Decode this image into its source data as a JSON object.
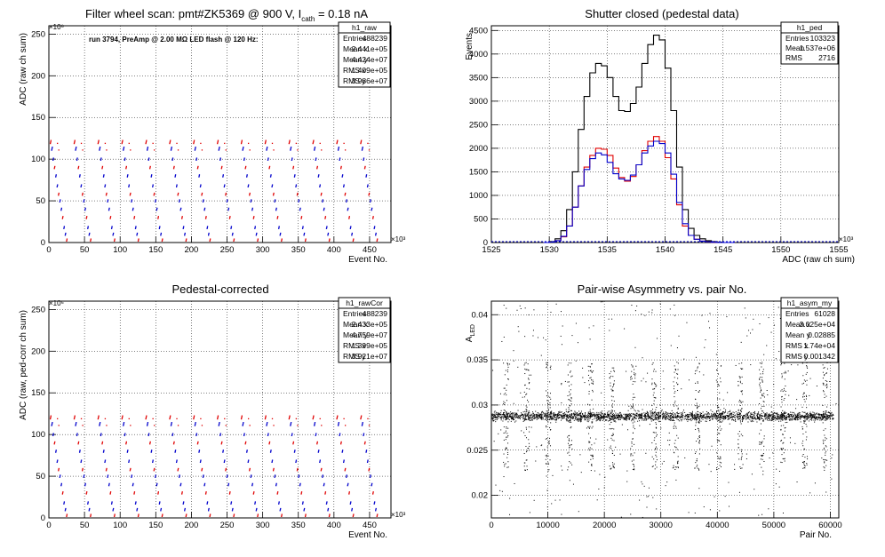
{
  "panels": {
    "raw": {
      "title_main": "Filter wheel scan: pmt#ZK5369 @   900 V, I",
      "title_sub": "cath",
      "title_end": " = 0.18 nA",
      "annotation": "run 3794, PreAmp @ 2.00 MΩ LED flash @  120 Hz:",
      "ylabel": "ADC (raw ch sum)",
      "xlabel": "Event No.",
      "xexp": "×10³",
      "yexp": "×10⁶",
      "stats": {
        "name": "h1_raw",
        "rows": [
          [
            "Entries",
            "488239"
          ],
          [
            "Mean x",
            "2.441e+05"
          ],
          [
            "Mean y",
            "4.424e+07"
          ],
          [
            "RMS x",
            "1.409e+05"
          ],
          [
            "RMS y",
            "3.986e+07"
          ]
        ]
      }
    },
    "ped": {
      "title": "Shutter closed (pedestal data)",
      "ylabel": "Events",
      "xlabel": "ADC (raw ch sum)",
      "xexp": "×10³",
      "stats": {
        "name": "h1_ped",
        "rows": [
          [
            "Entries",
            "103323"
          ],
          [
            "Mean",
            "1.537e+06"
          ],
          [
            "RMS",
            "2716"
          ]
        ]
      }
    },
    "cor": {
      "title": "Pedestal-corrected",
      "ylabel": "ADC (raw, ped-corr ch sum)",
      "xlabel": "Event No.",
      "xexp": "×10³",
      "yexp": "×10⁶",
      "stats": {
        "name": "h1_rawCor",
        "rows": [
          [
            "Entries",
            "488239"
          ],
          [
            "Mean x",
            "2.433e+05"
          ],
          [
            "Mean y",
            "4.759e+07"
          ],
          [
            "RMS x",
            "1.399e+05"
          ],
          [
            "RMS y",
            "3.921e+07"
          ]
        ]
      }
    },
    "asym": {
      "title": "Pair-wise Asymmetry vs. pair No.",
      "ylabel_main": "A",
      "ylabel_sub": "LED",
      "xlabel": "Pair No.",
      "stats": {
        "name": "h1_asym_my",
        "rows": [
          [
            "Entries",
            "61028"
          ],
          [
            "Mean x",
            "3.025e+04"
          ],
          [
            "Mean y",
            "0.02885"
          ],
          [
            "RMS x",
            "1.74e+04"
          ],
          [
            "RMS y",
            "0.001342"
          ]
        ]
      }
    }
  },
  "chart_data": [
    {
      "id": "raw",
      "type": "scatter",
      "xlim": [
        0,
        480
      ],
      "ylim": [
        0,
        260
      ],
      "xticks": [
        0,
        50,
        100,
        150,
        200,
        250,
        300,
        350,
        400,
        450
      ],
      "yticks": [
        0,
        50,
        100,
        150,
        200,
        250
      ],
      "grid": true,
      "level_pattern": [
        120,
        112,
        100,
        90,
        80,
        68,
        58,
        50,
        40,
        30,
        18,
        10,
        3
      ],
      "cycle_period": 33.5,
      "cycle_count": 14,
      "colors": {
        "a": "#e00000",
        "b": "#0000cc"
      }
    },
    {
      "id": "ped",
      "type": "line",
      "xlim": [
        1525,
        1555
      ],
      "ylim": [
        0,
        4600
      ],
      "xticks": [
        1525,
        1530,
        1535,
        1540,
        1545,
        1550,
        1555
      ],
      "yticks": [
        0,
        500,
        1000,
        1500,
        2000,
        2500,
        3000,
        3500,
        4000,
        4500
      ],
      "grid": true,
      "series": [
        {
          "color": "#000000",
          "x": [
            1529.5,
            1530,
            1530.5,
            1531,
            1531.5,
            1532,
            1532.5,
            1533,
            1533.5,
            1534,
            1534.5,
            1535,
            1535.5,
            1536,
            1536.5,
            1537,
            1537.5,
            1538,
            1538.5,
            1539,
            1539.5,
            1540,
            1540.5,
            1541,
            1541.5,
            1542,
            1542.5,
            1543,
            1543.5,
            1544,
            1544.5,
            1545,
            1545.5
          ],
          "y": [
            0,
            20,
            80,
            250,
            700,
            1500,
            2400,
            3100,
            3600,
            3800,
            3750,
            3500,
            3100,
            2800,
            2780,
            2950,
            3300,
            3800,
            4200,
            4400,
            4300,
            3700,
            2800,
            1600,
            700,
            300,
            150,
            80,
            40,
            20,
            10,
            0,
            0
          ]
        },
        {
          "color": "#e00000",
          "x": [
            1529.5,
            1530,
            1530.5,
            1531,
            1531.5,
            1532,
            1532.5,
            1533,
            1533.5,
            1534,
            1534.5,
            1535,
            1535.5,
            1536,
            1536.5,
            1537,
            1537.5,
            1538,
            1538.5,
            1539,
            1539.5,
            1540,
            1540.5,
            1541,
            1541.5,
            1542,
            1542.5,
            1543,
            1543.5,
            1544,
            1544.5,
            1545,
            1545.5
          ],
          "y": [
            0,
            10,
            40,
            120,
            350,
            750,
            1200,
            1600,
            1850,
            2000,
            1980,
            1850,
            1580,
            1380,
            1300,
            1400,
            1650,
            1950,
            2150,
            2250,
            2150,
            1800,
            1350,
            800,
            350,
            150,
            70,
            30,
            15,
            5,
            0,
            0,
            0
          ]
        },
        {
          "color": "#0000cc",
          "x": [
            1529.5,
            1530,
            1530.5,
            1531,
            1531.5,
            1532,
            1532.5,
            1533,
            1533.5,
            1534,
            1534.5,
            1535,
            1535.5,
            1536,
            1536.5,
            1537,
            1537.5,
            1538,
            1538.5,
            1539,
            1539.5,
            1540,
            1540.5,
            1541,
            1541.5,
            1542,
            1542.5,
            1543,
            1543.5,
            1544,
            1544.5,
            1545,
            1545.5
          ],
          "y": [
            0,
            10,
            40,
            130,
            350,
            750,
            1200,
            1550,
            1780,
            1900,
            1860,
            1700,
            1460,
            1350,
            1320,
            1430,
            1650,
            1900,
            2050,
            2150,
            2100,
            1900,
            1450,
            850,
            400,
            150,
            70,
            30,
            15,
            5,
            0,
            0,
            0
          ]
        }
      ]
    },
    {
      "id": "cor",
      "type": "scatter",
      "xlim": [
        0,
        480
      ],
      "ylim": [
        0,
        260
      ],
      "xticks": [
        0,
        50,
        100,
        150,
        200,
        250,
        300,
        350,
        400,
        450
      ],
      "yticks": [
        0,
        50,
        100,
        150,
        200,
        250
      ],
      "grid": true,
      "level_pattern": [
        120,
        112,
        100,
        90,
        80,
        68,
        58,
        50,
        40,
        30,
        18,
        10,
        3
      ],
      "cycle_period": 33.5,
      "cycle_count": 14,
      "colors": {
        "a": "#e00000",
        "b": "#0000cc"
      }
    },
    {
      "id": "asym",
      "type": "scatter",
      "xlim": [
        0,
        61500
      ],
      "ylim": [
        0.0175,
        0.0415
      ],
      "xticks": [
        0,
        10000,
        20000,
        30000,
        40000,
        50000,
        60000
      ],
      "yticks": [
        0.02,
        0.025,
        0.03,
        0.035,
        0.04
      ],
      "ytick_labels": [
        "0.02",
        "0.025",
        "0.03",
        "0.035",
        "0.04"
      ],
      "grid": true,
      "center": 0.0288,
      "band_halfwidth": 0.0009,
      "spike_positions": [
        2500,
        6200,
        10000,
        13800,
        17500,
        21300,
        25000,
        28800,
        32600,
        36400,
        40200,
        44000,
        47800,
        51600,
        55400,
        59000
      ],
      "color": "#000000"
    }
  ]
}
